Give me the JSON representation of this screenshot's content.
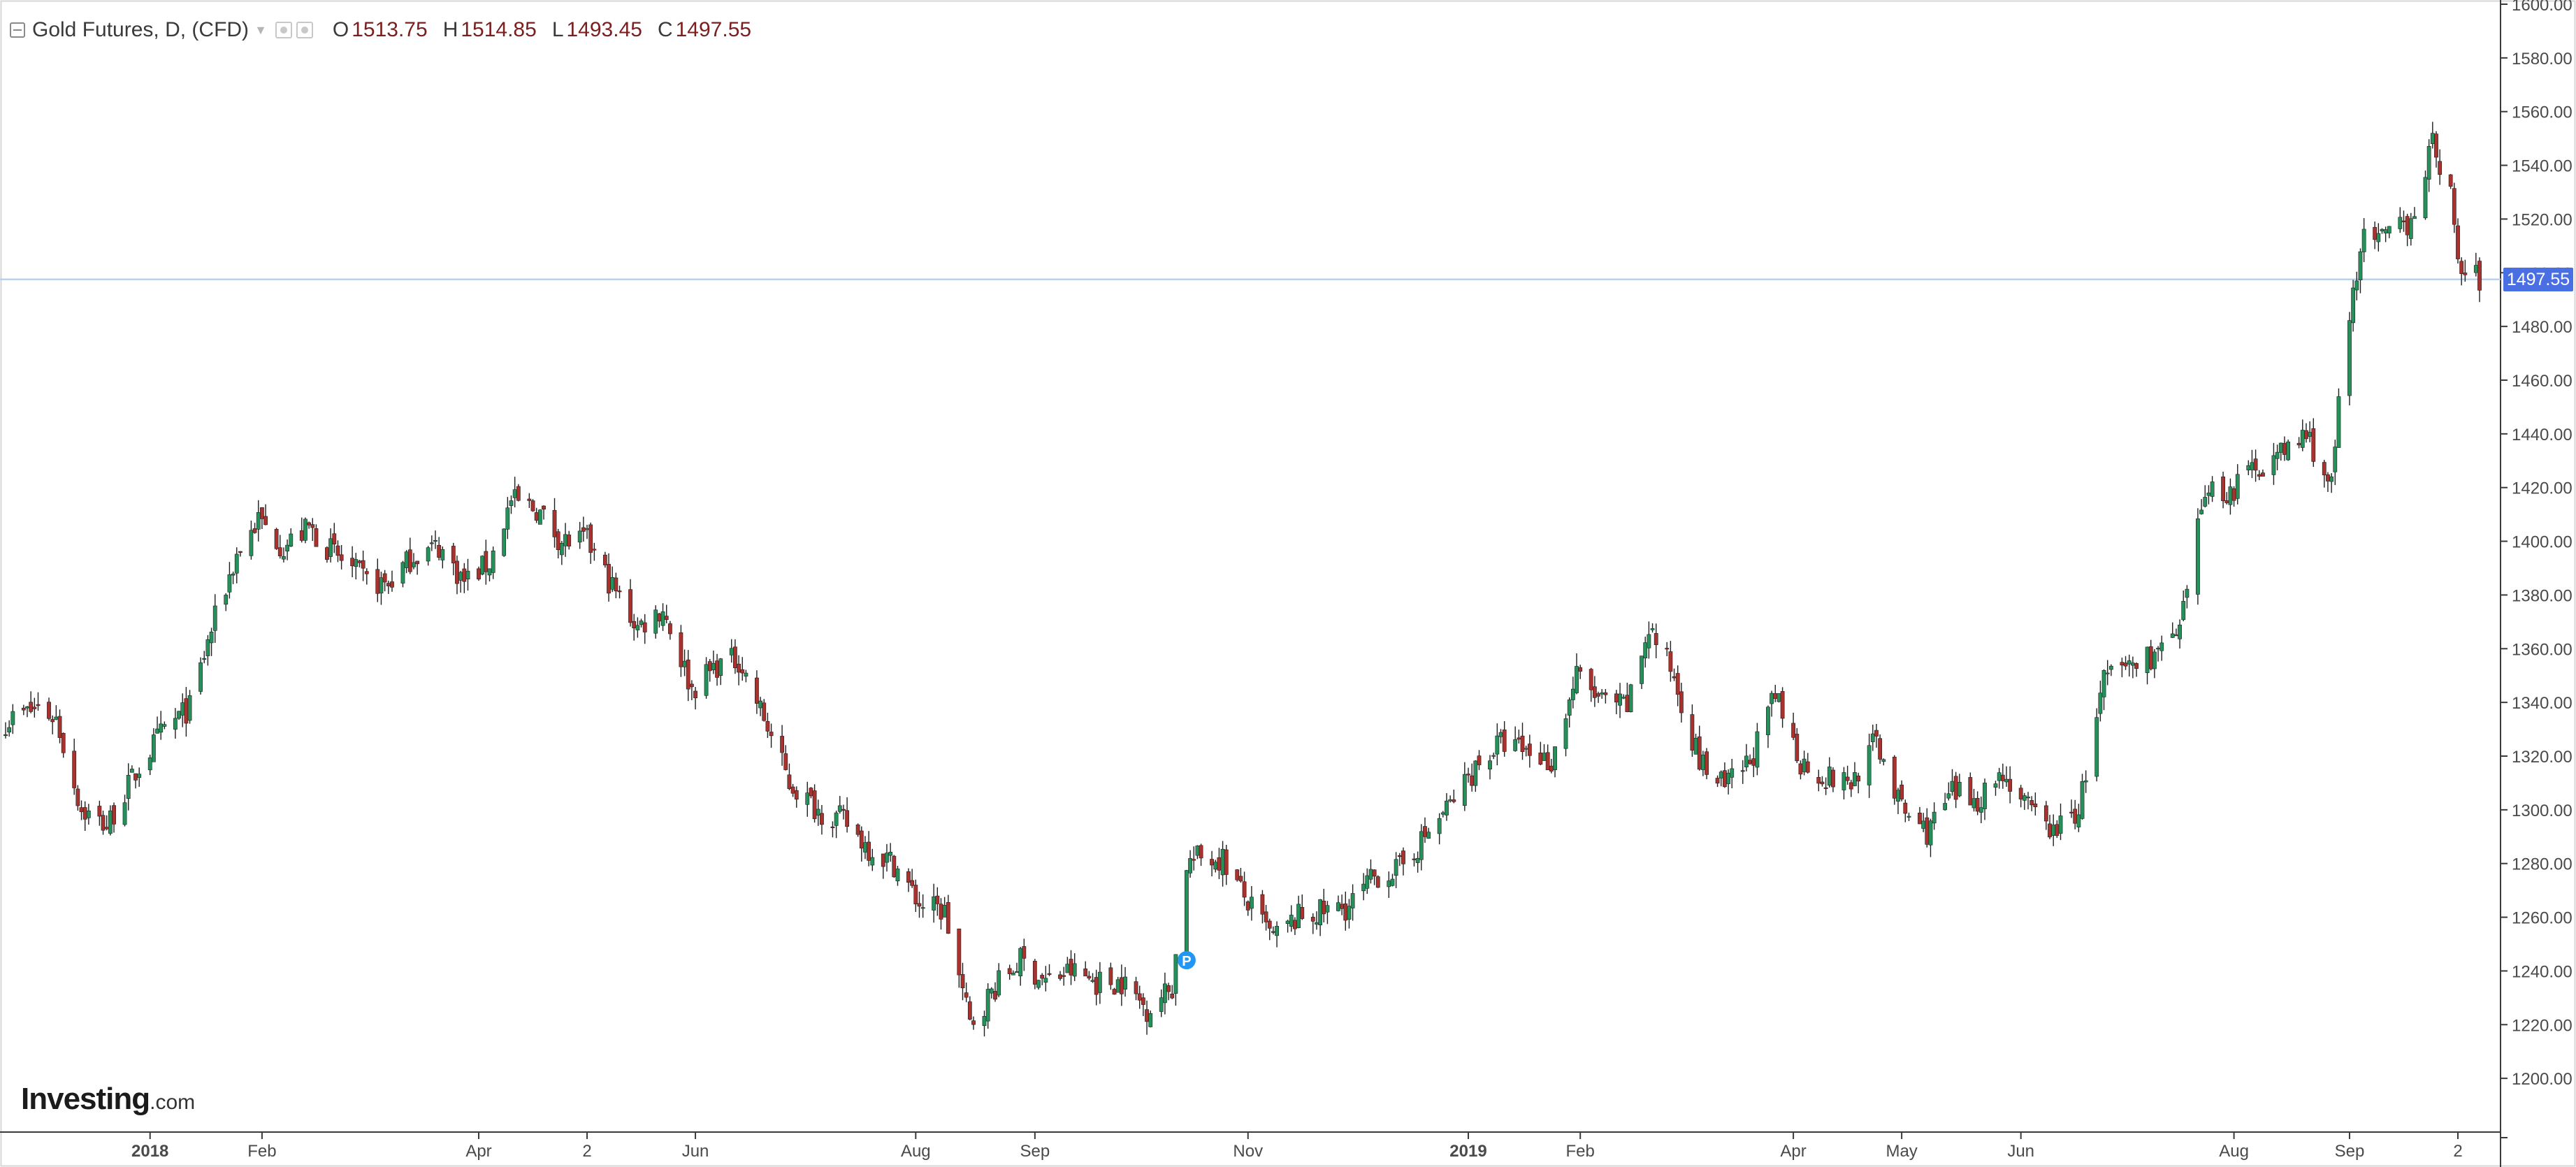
{
  "header": {
    "symbol": "Gold Futures, D, (CFD)",
    "open_label": "O",
    "open": "1513.75",
    "high_label": "H",
    "high": "1514.85",
    "low_label": "L",
    "low": "1493.45",
    "close_label": "C",
    "close": "1497.55"
  },
  "logo": {
    "main": "Investing",
    "domain": ".com"
  },
  "last_price_label": "1497.55",
  "colors": {
    "up": "#26905a",
    "down": "#a8322e",
    "last_price_line": "#bcd0f2",
    "badge": "#4a6fe3"
  },
  "marker_label": "P",
  "chart_data": {
    "type": "candlestick",
    "ylim": [
      1180,
      1600
    ],
    "y_ticks": [
      "1200.00",
      "1220.00",
      "1240.00",
      "1260.00",
      "1280.00",
      "1300.00",
      "1320.00",
      "1340.00",
      "1360.00",
      "1380.00",
      "1400.00",
      "1420.00",
      "1440.00",
      "1460.00",
      "1480.00",
      "1500.00",
      "1520.00",
      "1540.00",
      "1560.00",
      "1580.00",
      "1600.00"
    ],
    "x_labels": [
      {
        "label": "2018",
        "date": "2018-01-01",
        "bold": true
      },
      {
        "label": "Feb",
        "date": "2018-02-01"
      },
      {
        "label": "Apr",
        "date": "2018-04-02"
      },
      {
        "label": "2",
        "date": "2018-05-02"
      },
      {
        "label": "Jun",
        "date": "2018-06-01"
      },
      {
        "label": "Aug",
        "date": "2018-08-01"
      },
      {
        "label": "Sep",
        "date": "2018-09-03"
      },
      {
        "label": "Nov",
        "date": "2018-11-01"
      },
      {
        "label": "2019",
        "date": "2019-01-01",
        "bold": true
      },
      {
        "label": "Feb",
        "date": "2019-02-01"
      },
      {
        "label": "Apr",
        "date": "2019-04-01"
      },
      {
        "label": "May",
        "date": "2019-05-01"
      },
      {
        "label": "Jun",
        "date": "2019-06-03"
      },
      {
        "label": "Aug",
        "date": "2019-08-01"
      },
      {
        "label": "Sep",
        "date": "2019-09-02"
      },
      {
        "label": "2",
        "date": "2019-10-02"
      }
    ],
    "date_range": [
      "2017-11-22",
      "2019-10-08"
    ],
    "last_price": 1497.55,
    "marker_date": "2018-10-15",
    "close_path": [
      [
        "2017-11-22",
        1333
      ],
      [
        "2017-12-01",
        1338
      ],
      [
        "2017-12-06",
        1334
      ],
      [
        "2017-12-13",
        1300
      ],
      [
        "2017-12-20",
        1294
      ],
      [
        "2017-12-29",
        1316
      ],
      [
        "2018-01-05",
        1330
      ],
      [
        "2018-01-12",
        1338
      ],
      [
        "2018-01-18",
        1367
      ],
      [
        "2018-01-25",
        1395
      ],
      [
        "2018-01-31",
        1408
      ],
      [
        "2018-02-07",
        1398
      ],
      [
        "2018-02-14",
        1405
      ],
      [
        "2018-02-22",
        1394
      ],
      [
        "2018-03-02",
        1385
      ],
      [
        "2018-03-08",
        1384
      ],
      [
        "2018-03-15",
        1395
      ],
      [
        "2018-03-22",
        1398
      ],
      [
        "2018-03-29",
        1385
      ],
      [
        "2018-04-05",
        1392
      ],
      [
        "2018-04-11",
        1415
      ],
      [
        "2018-04-18",
        1412
      ],
      [
        "2018-04-25",
        1400
      ],
      [
        "2018-05-02",
        1400
      ],
      [
        "2018-05-09",
        1383
      ],
      [
        "2018-05-16",
        1368
      ],
      [
        "2018-05-23",
        1375
      ],
      [
        "2018-05-31",
        1345
      ],
      [
        "2018-06-07",
        1354
      ],
      [
        "2018-06-13",
        1356
      ],
      [
        "2018-06-20",
        1334
      ],
      [
        "2018-06-27",
        1310
      ],
      [
        "2018-07-05",
        1300
      ],
      [
        "2018-07-12",
        1296
      ],
      [
        "2018-07-19",
        1286
      ],
      [
        "2018-07-26",
        1280
      ],
      [
        "2018-08-02",
        1265
      ],
      [
        "2018-08-09",
        1262
      ],
      [
        "2018-08-16",
        1220
      ],
      [
        "2018-08-23",
        1234
      ],
      [
        "2018-08-30",
        1244
      ],
      [
        "2018-09-06",
        1236
      ],
      [
        "2018-09-13",
        1240
      ],
      [
        "2018-09-20",
        1236
      ],
      [
        "2018-09-27",
        1236
      ],
      [
        "2018-10-04",
        1226
      ],
      [
        "2018-10-11",
        1234
      ],
      [
        "2018-10-15",
        1280
      ],
      [
        "2018-10-18",
        1282
      ],
      [
        "2018-10-25",
        1282
      ],
      [
        "2018-11-01",
        1265
      ],
      [
        "2018-11-08",
        1252
      ],
      [
        "2018-11-15",
        1260
      ],
      [
        "2018-11-22",
        1262
      ],
      [
        "2018-11-29",
        1264
      ],
      [
        "2018-12-06",
        1275
      ],
      [
        "2018-12-13",
        1278
      ],
      [
        "2018-12-20",
        1290
      ],
      [
        "2018-12-27",
        1302
      ],
      [
        "2019-01-03",
        1316
      ],
      [
        "2019-01-10",
        1325
      ],
      [
        "2019-01-17",
        1322
      ],
      [
        "2019-01-24",
        1318
      ],
      [
        "2019-01-31",
        1350
      ],
      [
        "2019-02-07",
        1340
      ],
      [
        "2019-02-14",
        1338
      ],
      [
        "2019-02-20",
        1368
      ],
      [
        "2019-02-27",
        1350
      ],
      [
        "2019-03-06",
        1318
      ],
      [
        "2019-03-13",
        1308
      ],
      [
        "2019-03-20",
        1318
      ],
      [
        "2019-03-27",
        1342
      ],
      [
        "2019-04-03",
        1318
      ],
      [
        "2019-04-10",
        1312
      ],
      [
        "2019-04-17",
        1310
      ],
      [
        "2019-04-24",
        1326
      ],
      [
        "2019-05-01",
        1300
      ],
      [
        "2019-05-08",
        1292
      ],
      [
        "2019-05-15",
        1306
      ],
      [
        "2019-05-22",
        1304
      ],
      [
        "2019-05-29",
        1314
      ],
      [
        "2019-06-05",
        1300
      ],
      [
        "2019-06-12",
        1292
      ],
      [
        "2019-06-19",
        1300
      ],
      [
        "2019-06-26",
        1348
      ],
      [
        "2019-07-03",
        1354
      ],
      [
        "2019-07-10",
        1358
      ],
      [
        "2019-07-17",
        1365
      ],
      [
        "2019-07-24",
        1420
      ],
      [
        "2019-07-31",
        1418
      ],
      [
        "2019-08-07",
        1428
      ],
      [
        "2019-08-14",
        1432
      ],
      [
        "2019-08-21",
        1440
      ],
      [
        "2019-08-28",
        1420
      ],
      [
        "2019-08-30",
        1450
      ],
      [
        "2019-09-05",
        1512
      ],
      [
        "2019-09-12",
        1512
      ],
      [
        "2019-09-19",
        1520
      ],
      [
        "2019-09-25",
        1548
      ],
      [
        "2019-09-30",
        1530
      ],
      [
        "2019-10-02",
        1502
      ],
      [
        "2019-10-08",
        1497.55
      ]
    ]
  }
}
